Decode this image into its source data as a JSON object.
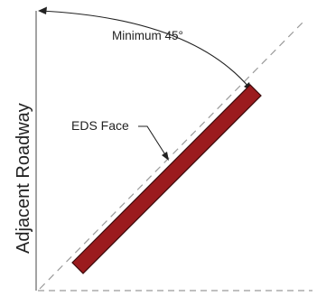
{
  "diagram": {
    "axis_label": "Adjacent Roadway",
    "angle_label": "Minimum 45°",
    "face_label": "EDS Face",
    "colors": {
      "eds_fill": "#9b1b1e",
      "eds_stroke": "#3a0a0b",
      "line": "#666666",
      "dashed": "#999999",
      "text": "#222222"
    }
  }
}
